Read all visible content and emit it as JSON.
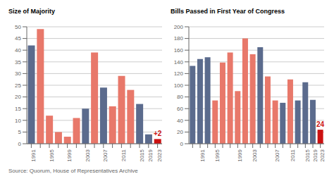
{
  "chart_data": [
    {
      "type": "bar",
      "title": "Size of Majority",
      "categories": [
        "1991",
        null,
        "1995",
        null,
        "1999",
        null,
        "2003",
        null,
        "2007",
        null,
        "2011",
        null,
        "2015",
        "2019",
        "2023"
      ],
      "values": [
        42,
        49,
        12,
        5,
        3,
        11,
        15,
        39,
        24,
        16,
        29,
        23,
        17,
        4,
        2
      ],
      "colors": [
        "#5b6b8d",
        "#e8786a",
        "#e8786a",
        "#e8786a",
        "#e8786a",
        "#e8786a",
        "#5b6b8d",
        "#e8786a",
        "#5b6b8d",
        "#e8786a",
        "#e8786a",
        "#e8786a",
        "#5b6b8d",
        "#5b6b8d",
        "#cc1111"
      ],
      "ylim": [
        0,
        50
      ],
      "yticks": [
        0,
        5,
        10,
        15,
        20,
        25,
        30,
        35,
        40,
        45,
        50
      ],
      "grid": true,
      "annotations": [
        "+2"
      ]
    },
    {
      "type": "bar",
      "title": "Bills Passed in First Year of Congress",
      "categories": [
        null,
        "1991",
        null,
        "1995",
        null,
        null,
        "1999",
        null,
        "2003",
        null,
        null,
        "2007",
        null,
        "2011",
        null,
        "2015",
        "2019",
        "2023"
      ],
      "values": [
        133,
        145,
        148,
        74,
        139,
        156,
        90,
        180,
        153,
        165,
        115,
        74,
        70,
        110,
        74,
        105,
        75,
        24
      ],
      "colors": [
        "#5b6b8d",
        "#5b6b8d",
        "#5b6b8d",
        "#e8786a",
        "#e8786a",
        "#e8786a",
        "#e8786a",
        "#e8786a",
        "#e8786a",
        "#5b6b8d",
        "#e8786a",
        "#e8786a",
        "#5b6b8d",
        "#e8786a",
        "#5b6b8d",
        "#5b6b8d",
        "#5b6b8d",
        "#cc1111"
      ],
      "ylim": [
        0,
        200
      ],
      "yticks": [
        0,
        20,
        40,
        60,
        80,
        100,
        120,
        140,
        160,
        180,
        200
      ],
      "grid": true,
      "annotations": [
        "24"
      ]
    }
  ],
  "source": "Source: Quorum, House of Representatives Archive"
}
